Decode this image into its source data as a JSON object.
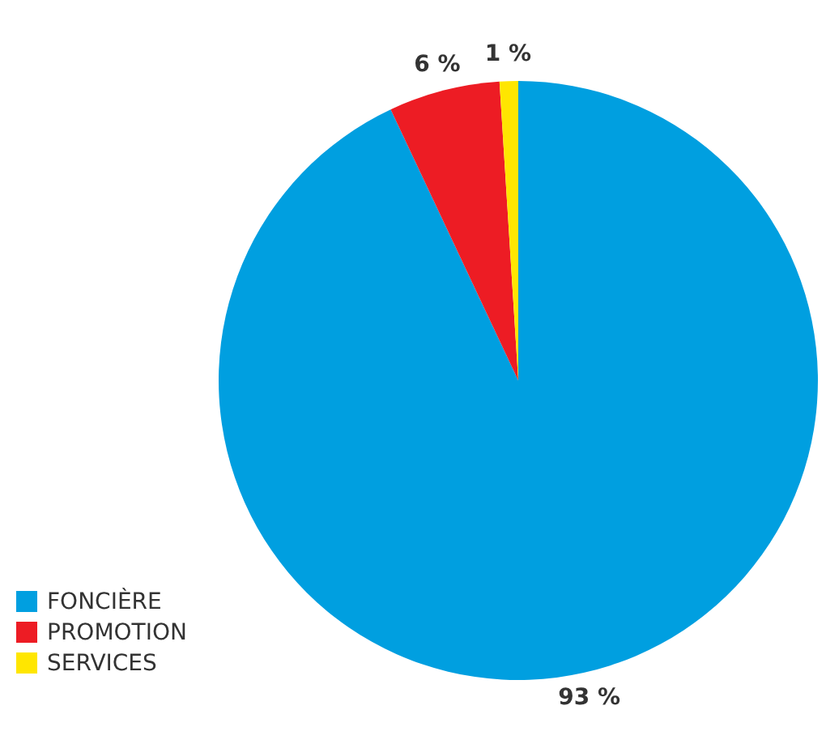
{
  "chart_data": {
    "type": "pie",
    "categories": [
      "FONCIÈRE",
      "PROMOTION",
      "SERVICES"
    ],
    "values": [
      93,
      6,
      1
    ],
    "colors": [
      "#009fe0",
      "#ed1c24",
      "#ffe600"
    ],
    "value_labels": [
      "93 %",
      "6 %",
      "1 %"
    ],
    "legend": "bottom left"
  }
}
